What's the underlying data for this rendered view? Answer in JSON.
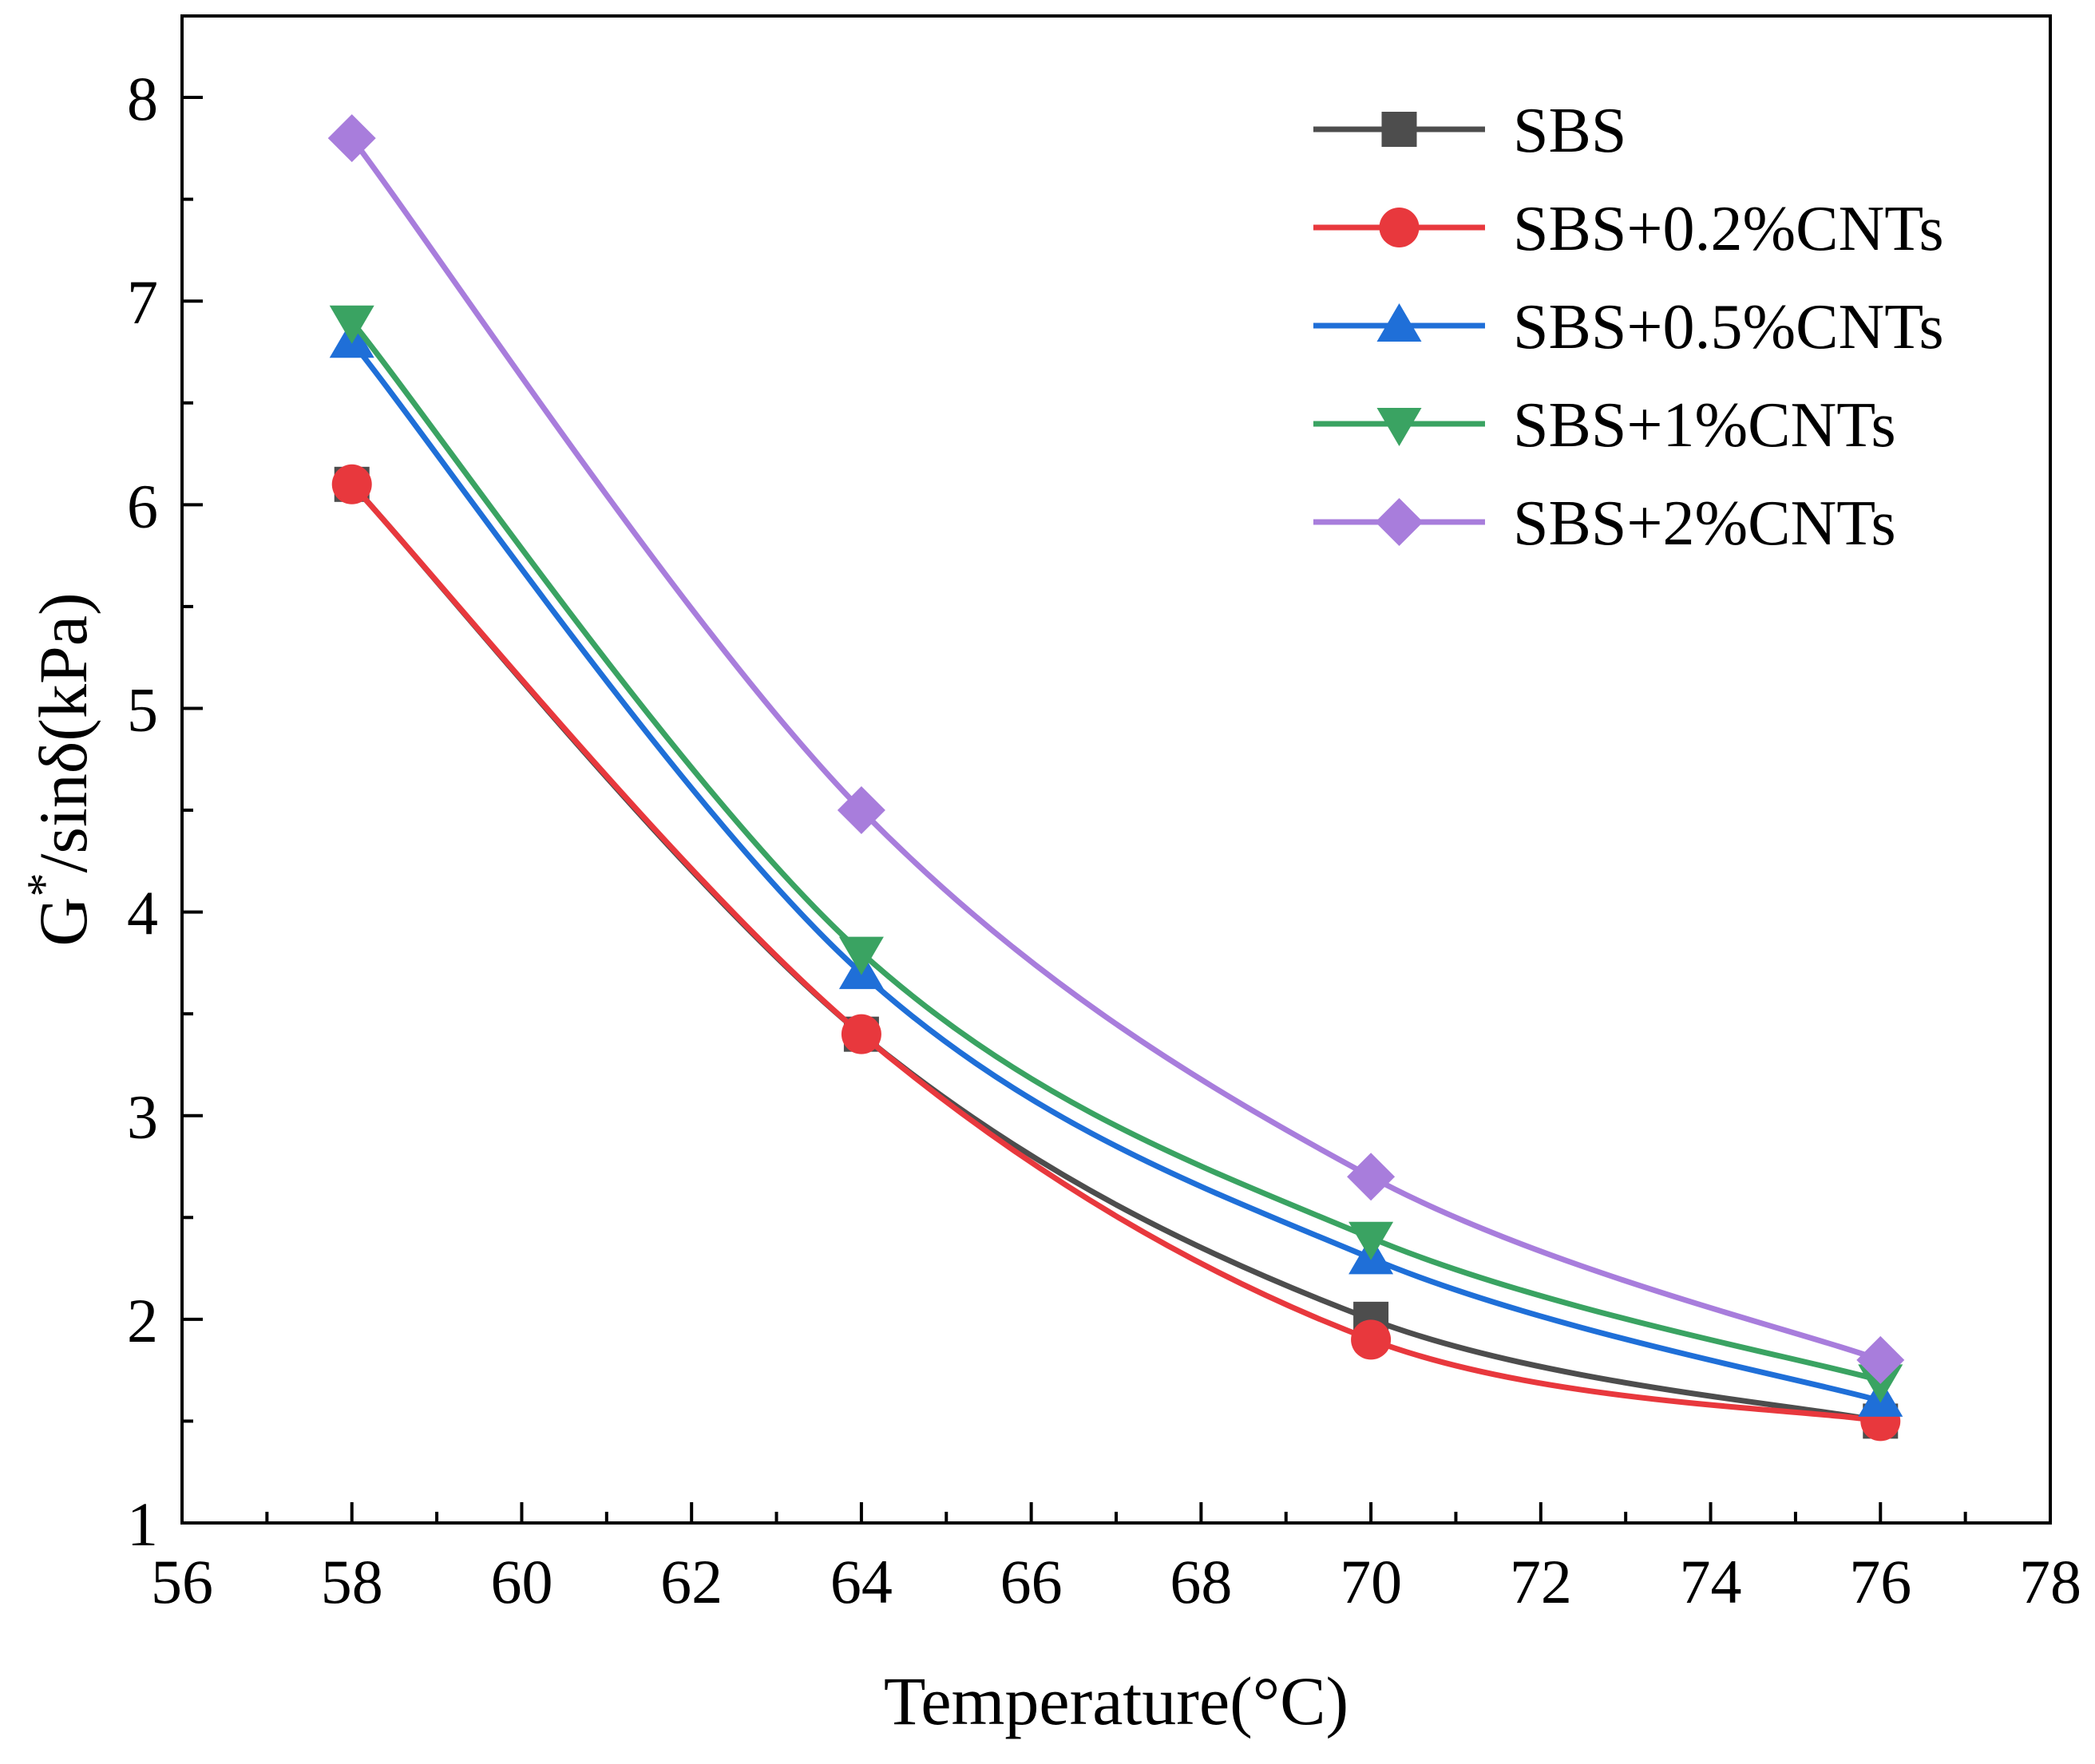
{
  "chart_data": {
    "type": "line",
    "title": "",
    "xlabel": "Temperature(°C)",
    "ylabel_main": "G",
    "ylabel_sup": "*",
    "ylabel_rest": "/sinδ(kPa)",
    "xlim": [
      56,
      78
    ],
    "ylim": [
      1,
      8.4
    ],
    "xticks": [
      56,
      58,
      60,
      62,
      64,
      66,
      68,
      70,
      72,
      74,
      76,
      78
    ],
    "yticks": [
      1,
      2,
      3,
      4,
      5,
      6,
      7,
      8
    ],
    "x": [
      58,
      64,
      70,
      76
    ],
    "legend_position": "top-right",
    "series": [
      {
        "name": "SBS",
        "marker": "square",
        "color": "#4d4d4d",
        "values": [
          6.1,
          3.4,
          2.0,
          1.5
        ]
      },
      {
        "name": "SBS+0.2%CNTs",
        "marker": "circle",
        "color": "#e8383d",
        "values": [
          6.1,
          3.4,
          1.9,
          1.5
        ]
      },
      {
        "name": "SBS+0.5%CNTs",
        "marker": "triangle-up",
        "color": "#1f6fd8",
        "values": [
          6.8,
          3.7,
          2.3,
          1.6
        ]
      },
      {
        "name": "SBS+1%CNTs",
        "marker": "triangle-down",
        "color": "#3aa362",
        "values": [
          6.9,
          3.8,
          2.4,
          1.7
        ]
      },
      {
        "name": "SBS+2%CNTs",
        "marker": "diamond",
        "color": "#a87ddc",
        "values": [
          7.8,
          4.5,
          2.7,
          1.8
        ]
      }
    ]
  }
}
